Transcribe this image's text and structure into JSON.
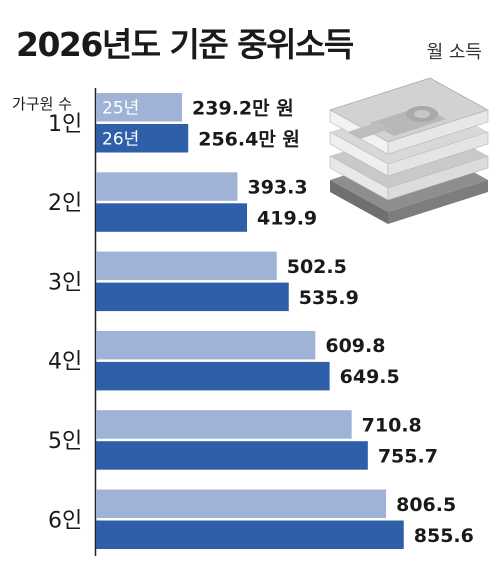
{
  "title": "2026년도 기준 중위소득",
  "unit_label": "월 소득",
  "colors": {
    "series_2025": "#9fb3d6",
    "series_2026": "#2f5fa8"
  },
  "illustration": "money-stack-icon",
  "chart_data": {
    "type": "bar",
    "orientation": "horizontal",
    "row_header": "가구원 수",
    "categories": [
      "1인",
      "2인",
      "3인",
      "4인",
      "5인",
      "6인"
    ],
    "series": [
      {
        "name": "25년",
        "values": [
          239.2,
          393.3,
          502.5,
          609.8,
          710.8,
          806.5
        ]
      },
      {
        "name": "26년",
        "values": [
          256.4,
          419.9,
          535.9,
          649.5,
          755.7,
          855.6
        ]
      }
    ],
    "value_labels": [
      [
        "239.2만 원",
        "393.3",
        "502.5",
        "609.8",
        "710.8",
        "806.5"
      ],
      [
        "256.4만 원",
        "419.9",
        "535.9",
        "649.5",
        "755.7",
        "855.6"
      ]
    ],
    "grid": false,
    "legend": "inside-first-bars"
  }
}
